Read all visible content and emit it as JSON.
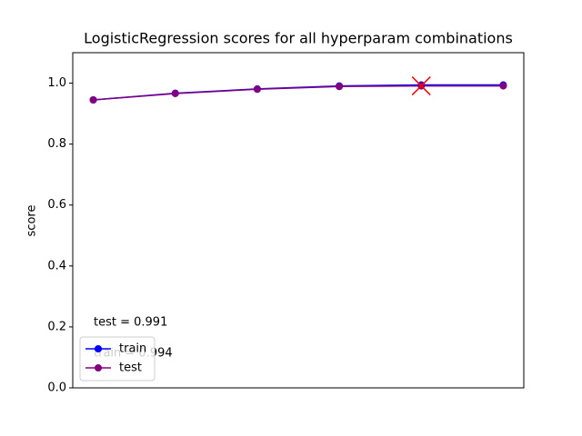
{
  "chart_data": {
    "type": "line",
    "title": "LogisticRegression scores for all hyperparam combinations",
    "y_label": "score",
    "categories": [
      null,
      null,
      null,
      null,
      null,
      null
    ],
    "series": [
      {
        "name": "train",
        "color": "blue",
        "values": [
          0.945,
          0.967,
          0.981,
          0.991,
          0.994,
          0.994
        ]
      },
      {
        "name": "test",
        "color": "purple",
        "values": [
          0.945,
          0.966,
          0.98,
          0.989,
          0.991,
          0.991
        ]
      }
    ],
    "highlight": {
      "series": 1,
      "index": 4,
      "color": "red"
    },
    "annotations": [
      {
        "text": "test = 0.991",
        "color": "purple"
      },
      {
        "text": "train = 0.994",
        "color": "blue"
      }
    ],
    "ylim": [
      0,
      1.1
    ],
    "yticks": [
      {
        "value": 0,
        "label": "0.0"
      },
      0.2,
      0.4,
      0.6,
      0.8,
      {
        "value": 1,
        "label": "1.0"
      }
    ],
    "grid": false,
    "legend": "lower left"
  }
}
